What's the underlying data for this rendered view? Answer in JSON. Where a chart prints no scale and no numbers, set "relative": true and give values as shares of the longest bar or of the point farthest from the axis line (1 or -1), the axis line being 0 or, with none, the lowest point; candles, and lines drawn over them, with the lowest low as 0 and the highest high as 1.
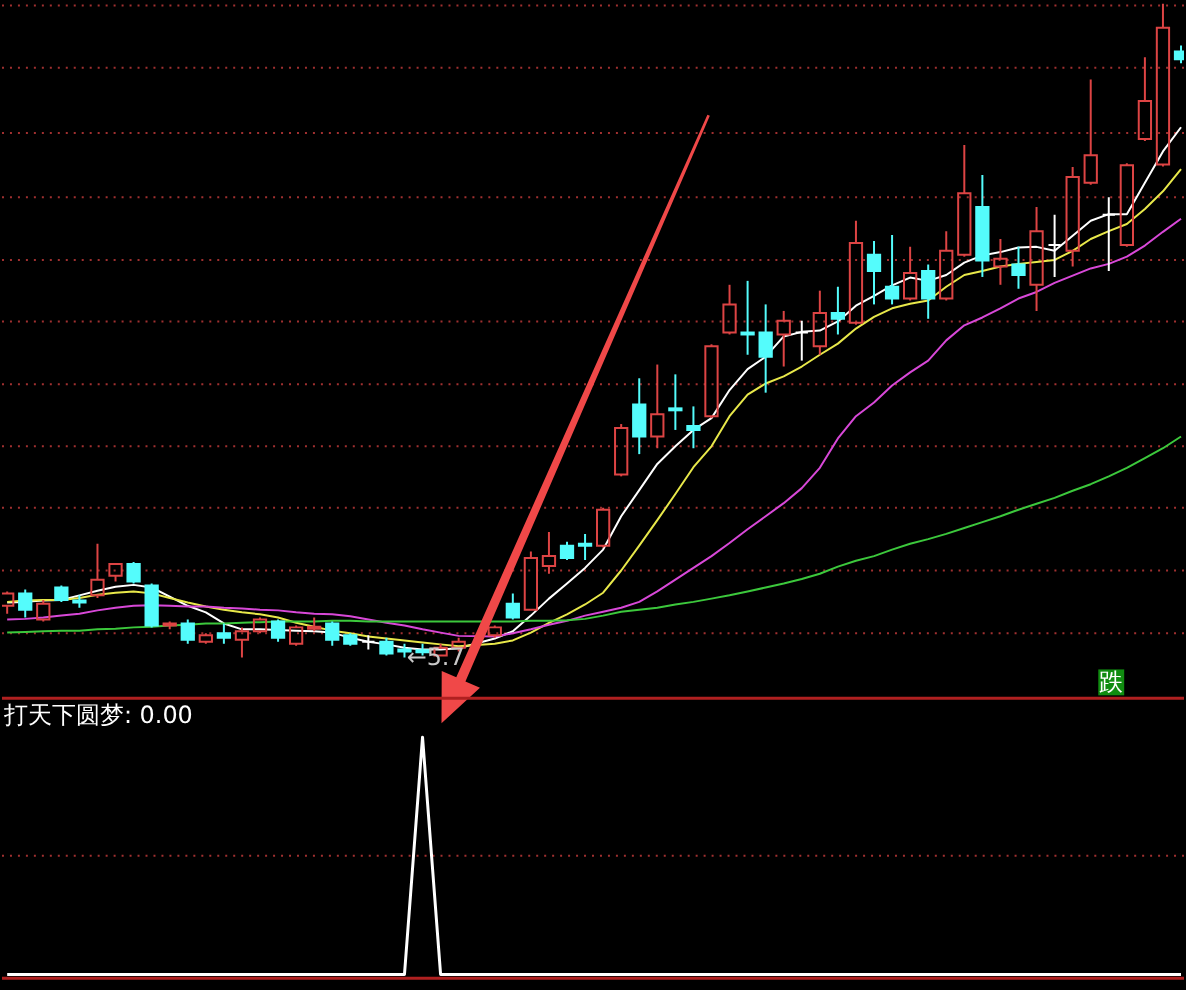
{
  "chart_data": [
    {
      "type": "candlestick",
      "relative": true,
      "categories": [
        null,
        null,
        null,
        null,
        null,
        null,
        null,
        null,
        null,
        null,
        null,
        null,
        null,
        null,
        null,
        null,
        null,
        null,
        null,
        null,
        null,
        null,
        null,
        null,
        null,
        null,
        null,
        null,
        null,
        null,
        null,
        null,
        null,
        null,
        null,
        null,
        null,
        null,
        null,
        null,
        null,
        null,
        null,
        null,
        null,
        null,
        null,
        null,
        null,
        null,
        null,
        null,
        null,
        null,
        null,
        null,
        null,
        null,
        null,
        null,
        null,
        null,
        null,
        null,
        null,
        null
      ],
      "ohlc": [
        [
          0.079,
          0.101,
          0.067,
          0.098
        ],
        [
          0.098,
          0.104,
          0.061,
          0.073
        ],
        [
          0.058,
          0.088,
          0.055,
          0.082
        ],
        [
          0.107,
          0.11,
          0.085,
          0.088
        ],
        [
          0.087,
          0.095,
          0.076,
          0.084
        ],
        [
          0.095,
          0.174,
          0.091,
          0.119
        ],
        [
          0.125,
          0.143,
          0.116,
          0.143
        ],
        [
          0.143,
          0.146,
          0.113,
          0.116
        ],
        [
          0.11,
          0.113,
          0.046,
          0.049
        ],
        [
          0.049,
          0.055,
          0.043,
          0.052
        ],
        [
          0.052,
          0.058,
          0.021,
          0.027
        ],
        [
          0.024,
          0.037,
          0.021,
          0.034
        ],
        [
          0.037,
          0.052,
          0.021,
          0.03
        ],
        [
          0.027,
          0.046,
          0,
          0.04
        ],
        [
          0.04,
          0.061,
          0.037,
          0.058
        ],
        [
          0.055,
          0.058,
          0.024,
          0.03
        ],
        [
          0.021,
          0.049,
          0.018,
          0.046
        ],
        [
          0.044,
          0.061,
          0.04,
          0.047
        ],
        [
          0.052,
          0.055,
          0.018,
          0.027
        ],
        [
          0.034,
          0.037,
          0.018,
          0.021
        ],
        [
          0.024,
          0.034,
          0.012,
          0.024
        ],
        [
          0.024,
          0.03,
          0.003,
          0.006
        ],
        [
          0.012,
          0.021,
          0,
          0.009
        ],
        [
          0.011,
          0.021,
          0.003,
          0.008
        ],
        [
          0.003,
          0.021,
          0.003,
          0.015
        ],
        [
          0.015,
          0.03,
          0.009,
          0.024
        ],
        null,
        [
          0.034,
          0.049,
          0.03,
          0.046
        ],
        [
          0.082,
          0.098,
          0.058,
          0.061
        ],
        [
          0.073,
          0.162,
          0.073,
          0.152
        ],
        [
          0.14,
          0.192,
          0.128,
          0.155
        ],
        [
          0.171,
          0.177,
          0.149,
          0.152
        ],
        [
          0.174,
          0.189,
          0.149,
          0.171
        ],
        [
          0.171,
          0.229,
          0.168,
          0.226
        ],
        [
          0.28,
          0.357,
          0.277,
          0.351
        ],
        [
          0.387,
          0.427,
          0.311,
          0.338
        ],
        [
          0.338,
          0.448,
          0.32,
          0.372
        ],
        [
          0.381,
          0.433,
          0.348,
          0.378
        ],
        [
          0.354,
          0.384,
          0.32,
          0.348
        ],
        [
          0.369,
          0.479,
          0.366,
          0.476
        ],
        [
          0.497,
          0.57,
          0.494,
          0.54
        ],
        [
          0.497,
          0.576,
          0.463,
          0.494
        ],
        [
          0.497,
          0.54,
          0.405,
          0.46
        ],
        [
          0.494,
          0.53,
          0.445,
          0.515
        ],
        [
          0.497,
          0.515,
          0.454,
          0.497
        ],
        [
          0.476,
          0.561,
          0.463,
          0.527
        ],
        [
          0.527,
          0.567,
          0.494,
          0.518
        ],
        [
          0.512,
          0.668,
          0.509,
          0.634
        ],
        [
          0.616,
          0.637,
          0.54,
          0.591
        ],
        [
          0.567,
          0.646,
          0.54,
          0.549
        ],
        [
          0.549,
          0.628,
          0.546,
          0.588
        ],
        [
          0.591,
          0.601,
          0.518,
          0.549
        ],
        [
          0.549,
          0.652,
          0.546,
          0.622
        ],
        [
          0.616,
          0.784,
          0.613,
          0.71
        ],
        [
          0.689,
          0.738,
          0.582,
          0.607
        ],
        [
          0.598,
          0.64,
          0.57,
          0.61
        ],
        [
          0.601,
          0.628,
          0.564,
          0.585
        ],
        [
          0.57,
          0.689,
          0.53,
          0.652
        ],
        [
          0.631,
          0.677,
          0.582,
          0.631
        ],
        [
          0.622,
          0.75,
          0.598,
          0.735
        ],
        [
          0.726,
          0.884,
          0.723,
          0.768
        ],
        [
          0.677,
          0.704,
          0.591,
          0.677
        ],
        [
          0.631,
          0.756,
          0.628,
          0.753
        ],
        [
          0.793,
          0.918,
          0.79,
          0.851
        ],
        [
          0.754,
          1,
          0.751,
          0.963
        ],
        [
          0.927,
          0.936,
          0.909,
          0.915
        ]
      ],
      "colors": [
        "#dd4444",
        "#54fcfc",
        "#dd4444",
        "#54fcfc",
        "#54fcfc",
        "#dd4444",
        "#dd4444",
        "#54fcfc",
        "#54fcfc",
        "#dd4444",
        "#54fcfc",
        "#dd4444",
        "#54fcfc",
        "#dd4444",
        "#dd4444",
        "#54fcfc",
        "#dd4444",
        "#dd4444",
        "#54fcfc",
        "#54fcfc",
        "#ffffff",
        "#54fcfc",
        "#54fcfc",
        "#54fcfc",
        "#dd4444",
        "#dd4444",
        "#dd4444",
        "#dd4444",
        "#54fcfc",
        "#dd4444",
        "#dd4444",
        "#54fcfc",
        "#54fcfc",
        "#dd4444",
        "#dd4444",
        "#54fcfc",
        "#dd4444",
        "#54fcfc",
        "#54fcfc",
        "#dd4444",
        "#dd4444",
        "#54fcfc",
        "#54fcfc",
        "#dd4444",
        "#ffffff",
        "#dd4444",
        "#54fcfc",
        "#dd4444",
        "#54fcfc",
        "#54fcfc",
        "#dd4444",
        "#54fcfc",
        "#dd4444",
        "#dd4444",
        "#54fcfc",
        "#dd4444",
        "#54fcfc",
        "#dd4444",
        "#ffffff",
        "#dd4444",
        "#dd4444",
        "#ffffff",
        "#dd4444",
        "#dd4444",
        "#dd4444",
        "#54fcfc"
      ],
      "series": [
        {
          "type": "line",
          "color": "#ffffff",
          "values": [
            0.084,
            0.085,
            0.087,
            0.088,
            0.095,
            0.102,
            0.108,
            0.111,
            0.107,
            0.093,
            0.079,
            0.069,
            0.052,
            0.043,
            0.043,
            0.042,
            0.041,
            0.04,
            0.038,
            0.03,
            0.024,
            0.02,
            0.015,
            0.012,
            0.012,
            0.014,
            null,
            0.029,
            0.04,
            0.064,
            0.09,
            0.113,
            0.137,
            0.165,
            0.216,
            0.256,
            0.296,
            0.323,
            0.348,
            0.366,
            0.409,
            0.441,
            0.46,
            0.491,
            0.498,
            0.5,
            0.514,
            0.538,
            0.553,
            0.569,
            0.581,
            0.576,
            0.585,
            0.604,
            0.615,
            0.62,
            0.627,
            0.628,
            0.622,
            0.645,
            0.668,
            0.678,
            0.678,
            0.726,
            0.774,
            0.811
          ]
        },
        {
          "type": "line",
          "color": "#e8e84a",
          "values": [
            0.085,
            0.087,
            0.088,
            0.088,
            0.091,
            0.096,
            0.099,
            0.101,
            0.098,
            0.091,
            0.084,
            0.078,
            0.073,
            0.069,
            0.066,
            0.061,
            0.053,
            0.047,
            0.041,
            0.037,
            0.032,
            0.029,
            0.026,
            0.023,
            0.02,
            0.017,
            null,
            0.021,
            0.026,
            0.038,
            0.053,
            0.066,
            0.081,
            0.099,
            0.133,
            0.171,
            0.21,
            0.25,
            0.291,
            0.323,
            0.369,
            0.402,
            0.419,
            0.43,
            0.445,
            0.463,
            0.48,
            0.503,
            0.521,
            0.534,
            0.541,
            0.546,
            0.567,
            0.585,
            0.591,
            0.598,
            0.602,
            0.605,
            0.608,
            0.622,
            0.64,
            0.652,
            0.663,
            0.686,
            0.713,
            0.747
          ]
        },
        {
          "type": "line",
          "color": "#d848d8",
          "values": [
            0.058,
            0.059,
            0.061,
            0.064,
            0.067,
            0.072,
            0.076,
            0.079,
            0.08,
            0.079,
            0.078,
            0.078,
            0.076,
            0.075,
            0.073,
            0.072,
            0.069,
            0.067,
            0.066,
            0.063,
            0.058,
            0.053,
            0.049,
            0.043,
            0.038,
            0.033,
            null,
            0.032,
            0.037,
            0.043,
            0.05,
            0.056,
            0.064,
            0.07,
            0.076,
            0.085,
            0.101,
            0.119,
            0.137,
            0.155,
            0.175,
            0.196,
            0.216,
            0.236,
            0.259,
            0.29,
            0.335,
            0.369,
            0.39,
            0.416,
            0.436,
            0.454,
            0.485,
            0.508,
            0.52,
            0.534,
            0.549,
            0.559,
            0.573,
            0.584,
            0.595,
            0.602,
            0.613,
            0.63,
            0.651,
            0.671
          ]
        },
        {
          "type": "line",
          "color": "#3cc83c",
          "values": [
            0.038,
            0.039,
            0.04,
            0.041,
            0.041,
            0.043,
            0.044,
            0.046,
            0.047,
            0.049,
            0.05,
            0.052,
            0.052,
            0.053,
            0.054,
            0.055,
            0.055,
            0.055,
            0.056,
            0.056,
            0.055,
            0.055,
            0.055,
            0.055,
            0.055,
            0.055,
            0.055,
            0.055,
            0.055,
            0.056,
            0.056,
            0.057,
            0.059,
            0.064,
            0.07,
            0.073,
            0.076,
            0.081,
            0.085,
            0.09,
            0.095,
            0.101,
            0.107,
            0.113,
            0.12,
            0.128,
            0.139,
            0.148,
            0.155,
            0.165,
            0.174,
            0.181,
            0.189,
            0.198,
            0.207,
            0.216,
            0.226,
            0.235,
            0.244,
            0.255,
            0.265,
            0.277,
            0.29,
            0.305,
            0.32,
            0.338
          ]
        }
      ],
      "ref_lines": [
        {
          "axis": "y",
          "value": 0.997,
          "color": "#a03030",
          "line_style": "dotted"
        },
        {
          "axis": "y",
          "value": 0.902,
          "color": "#a03030",
          "line_style": "dotted"
        },
        {
          "axis": "y",
          "value": 0.802,
          "color": "#a03030",
          "line_style": "dotted"
        },
        {
          "axis": "y",
          "value": 0.704,
          "color": "#a03030",
          "line_style": "dotted"
        },
        {
          "axis": "y",
          "value": 0.608,
          "color": "#a03030",
          "line_style": "dotted"
        },
        {
          "axis": "y",
          "value": 0.514,
          "color": "#a03030",
          "line_style": "dotted"
        },
        {
          "axis": "y",
          "value": 0.418,
          "color": "#a03030",
          "line_style": "dotted"
        },
        {
          "axis": "y",
          "value": 0.323,
          "color": "#a03030",
          "line_style": "dotted"
        },
        {
          "axis": "y",
          "value": 0.229,
          "color": "#a03030",
          "line_style": "dotted"
        },
        {
          "axis": "y",
          "value": 0.133,
          "color": "#a03030",
          "line_style": "dotted"
        },
        {
          "axis": "y",
          "value": 0.037,
          "color": "#a03030",
          "line_style": "dotted"
        }
      ],
      "annotations": [
        {
          "text": "←5.7",
          "y": 0
        },
        "跌"
      ]
    },
    {
      "type": "line",
      "relative": true,
      "title": "打天下圆梦: 0.00",
      "categories": [
        null,
        null,
        null,
        null,
        null,
        null,
        null,
        null,
        null,
        null,
        null,
        null,
        null,
        null,
        null,
        null,
        null,
        null,
        null,
        null,
        null,
        null,
        null,
        null,
        null,
        null,
        null,
        null,
        null,
        null,
        null,
        null,
        null,
        null,
        null,
        null,
        null,
        null,
        null,
        null,
        null,
        null,
        null,
        null,
        null,
        null,
        null,
        null,
        null,
        null,
        null,
        null,
        null,
        null,
        null,
        null,
        null,
        null,
        null,
        null,
        null,
        null,
        null,
        null,
        null,
        null
      ],
      "series": [
        {
          "color": "#ffffff",
          "values": [
            0,
            0,
            0,
            0,
            0,
            0,
            0,
            0,
            0,
            0,
            0,
            0,
            0,
            0,
            0,
            0,
            0,
            0,
            0,
            0,
            0,
            0,
            0,
            1,
            0,
            0,
            0,
            0,
            0,
            0,
            0,
            0,
            0,
            0,
            0,
            0,
            0,
            0,
            0,
            0,
            0,
            0,
            0,
            0,
            0,
            0,
            0,
            0,
            0,
            0,
            0,
            0,
            0,
            0,
            0,
            0,
            0,
            0,
            0,
            0,
            0,
            0,
            0,
            0,
            0,
            0
          ]
        }
      ],
      "ref_lines": [
        {
          "axis": "y",
          "value": 0.5,
          "color": "#a03030",
          "line_style": "dotted"
        }
      ]
    }
  ]
}
